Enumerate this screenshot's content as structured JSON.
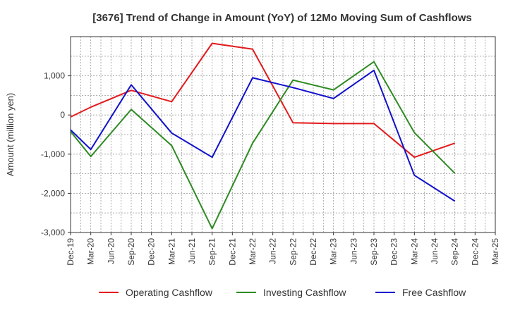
{
  "chart_data": {
    "type": "line",
    "title": "[3676]  Trend of Change in Amount (YoY) of 12Mo Moving Sum of Cashflows",
    "ylabel": "Amount (million yen)",
    "xlabel": "",
    "ylim": [
      -3000,
      2000
    ],
    "yticks": [
      1000,
      0,
      -1000,
      -2000,
      -3000
    ],
    "ytick_labels": [
      "1,000",
      "0",
      "-1,000",
      "-2,000",
      "-3,000"
    ],
    "categories": [
      "Dec-19",
      "Mar-20",
      "Jun-20",
      "Sep-20",
      "Dec-20",
      "Mar-21",
      "Jun-21",
      "Sep-21",
      "Dec-21",
      "Mar-22",
      "Jun-22",
      "Sep-22",
      "Dec-22",
      "Mar-23",
      "Jun-23",
      "Sep-23",
      "Dec-23",
      "Mar-24",
      "Jun-24",
      "Sep-24",
      "Dec-24",
      "Mar-25"
    ],
    "grid": true,
    "legend_position": "bottom",
    "series": [
      {
        "name": "Operating Cashflow",
        "color": "#e31a1c",
        "points": [
          [
            0,
            -50
          ],
          [
            1,
            200
          ],
          [
            3,
            630
          ],
          [
            5,
            340
          ],
          [
            7,
            1830
          ],
          [
            9,
            1680
          ],
          [
            11,
            -200
          ],
          [
            13,
            -220
          ],
          [
            15,
            -220
          ],
          [
            17,
            -1080
          ],
          [
            19,
            -720
          ]
        ]
      },
      {
        "name": "Investing Cashflow",
        "color": "#2e8b22",
        "points": [
          [
            0,
            -420
          ],
          [
            1,
            -1060
          ],
          [
            3,
            140
          ],
          [
            5,
            -780
          ],
          [
            7,
            -2900
          ],
          [
            9,
            -720
          ],
          [
            11,
            890
          ],
          [
            13,
            640
          ],
          [
            15,
            1360
          ],
          [
            17,
            -450
          ],
          [
            19,
            -1490
          ]
        ]
      },
      {
        "name": "Free Cashflow",
        "color": "#1010cc",
        "points": [
          [
            0,
            -380
          ],
          [
            1,
            -880
          ],
          [
            3,
            770
          ],
          [
            5,
            -460
          ],
          [
            7,
            -1080
          ],
          [
            9,
            950
          ],
          [
            11,
            700
          ],
          [
            13,
            420
          ],
          [
            15,
            1140
          ],
          [
            17,
            -1540
          ],
          [
            19,
            -2200
          ]
        ]
      }
    ]
  }
}
